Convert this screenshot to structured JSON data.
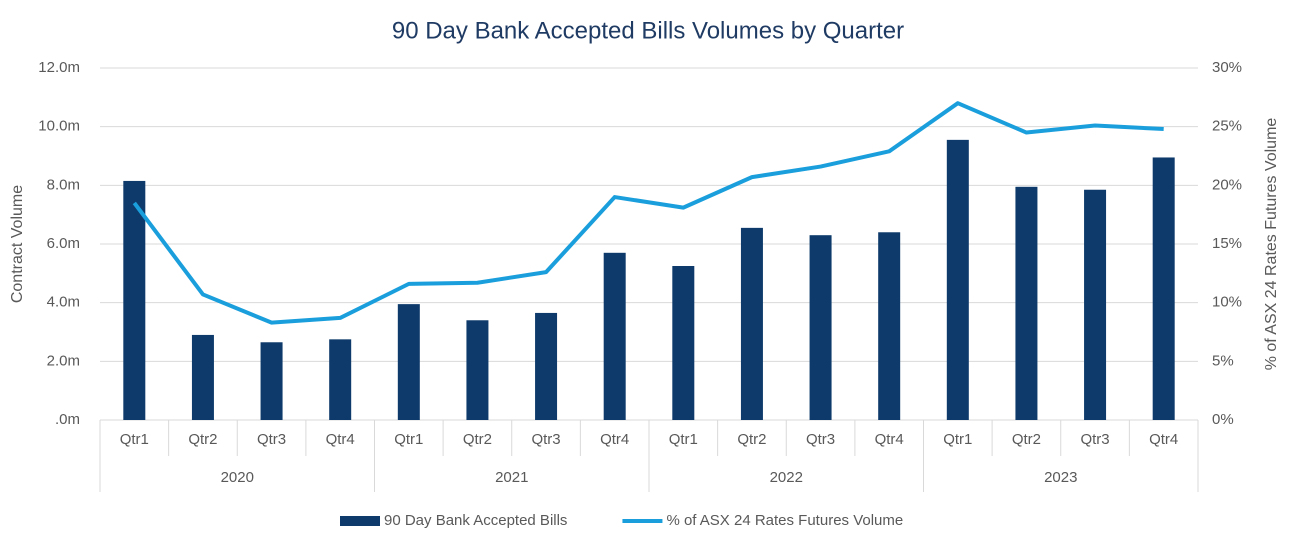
{
  "chart_data": {
    "type": "bar-line",
    "title": "90 Day Bank Accepted Bills Volumes by Quarter",
    "ylabel": "Contract Volume",
    "y2label": "% of ASX 24 Rates Futures Volume",
    "categories": [
      "Qtr1",
      "Qtr2",
      "Qtr3",
      "Qtr4",
      "Qtr1",
      "Qtr2",
      "Qtr3",
      "Qtr4",
      "Qtr1",
      "Qtr2",
      "Qtr3",
      "Qtr4",
      "Qtr1",
      "Qtr2",
      "Qtr3",
      "Qtr4"
    ],
    "groups": [
      "2020",
      "2021",
      "2022",
      "2023"
    ],
    "series": [
      {
        "name": "90 Day Bank Accepted Bills",
        "type": "bar",
        "color": "#0d3a6b",
        "values": [
          8.15,
          2.9,
          2.65,
          2.75,
          3.95,
          3.4,
          3.65,
          5.7,
          5.25,
          6.55,
          6.3,
          6.4,
          9.55,
          7.95,
          7.85,
          8.95
        ]
      },
      {
        "name": "% of ASX 24 Rates Futures Volume",
        "type": "line",
        "axis": "y2",
        "color": "#1a9fdc",
        "values": [
          18.5,
          10.7,
          8.3,
          8.7,
          11.6,
          11.7,
          12.6,
          19.0,
          18.1,
          20.7,
          21.6,
          22.9,
          27.0,
          24.5,
          25.1,
          24.8
        ]
      }
    ],
    "ylim": [
      0,
      12
    ],
    "yticks": [
      {
        "value": 0,
        "label": ".0m"
      },
      {
        "value": 2,
        "label": "2.0m"
      },
      {
        "value": 4,
        "label": "4.0m"
      },
      {
        "value": 6,
        "label": "6.0m"
      },
      {
        "value": 8,
        "label": "8.0m"
      },
      {
        "value": 10,
        "label": "10.0m"
      },
      {
        "value": 12,
        "label": "12.0m"
      }
    ],
    "y2lim": [
      0,
      30
    ],
    "y2ticks": [
      {
        "value": 0,
        "label": "0%"
      },
      {
        "value": 5,
        "label": "5%"
      },
      {
        "value": 10,
        "label": "10%"
      },
      {
        "value": 15,
        "label": "15%"
      },
      {
        "value": 20,
        "label": "20%"
      },
      {
        "value": 25,
        "label": "25%"
      },
      {
        "value": 30,
        "label": "30%"
      }
    ],
    "grid": true,
    "legend": "bottom"
  }
}
